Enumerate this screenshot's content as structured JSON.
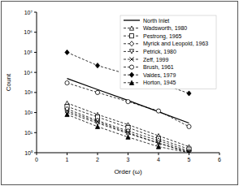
{
  "chart_data": {
    "type": "line",
    "x_label": "Order (ω)",
    "y_label": "Count",
    "x": [
      1,
      2,
      3,
      4,
      5
    ],
    "xlim": [
      0,
      6
    ],
    "xticks": [
      0,
      1,
      2,
      3,
      4,
      5,
      6
    ],
    "ylim": [
      1,
      10000000
    ],
    "yticks": [
      {
        "value": 1,
        "label": "10⁰"
      },
      {
        "value": 10,
        "label": "10¹"
      },
      {
        "value": 100,
        "label": "10²"
      },
      {
        "value": 1000,
        "label": "10³"
      },
      {
        "value": 10000,
        "label": "10⁴"
      },
      {
        "value": 100000,
        "label": "10⁵"
      },
      {
        "value": 1000000,
        "label": "10⁶"
      },
      {
        "value": 10000000,
        "label": "10⁷"
      }
    ],
    "log": "y",
    "grid": false,
    "legend": "upper right",
    "series": [
      {
        "name": "North Inlet",
        "color": "#000000",
        "line_style": "solid",
        "marker": "none",
        "values": [
          5000,
          1400,
          400,
          110,
          30
        ]
      },
      {
        "name": "Wadsworth, 1980",
        "color": "#000000",
        "line_style": "dashed",
        "marker": "open-triangle",
        "values": [
          300,
          80,
          25,
          7,
          2
        ]
      },
      {
        "name": "Pestrong, 1965",
        "color": "#000000",
        "line_style": "dashed",
        "marker": "open-square",
        "values": [
          200,
          60,
          18,
          5,
          1.5
        ]
      },
      {
        "name": "Myrick and Leopold, 1963",
        "color": "#000000",
        "line_style": "dashed",
        "marker": "open-diamond",
        "values": [
          150,
          40,
          12,
          4,
          1.2
        ]
      },
      {
        "name": "Petrick, 1980",
        "color": "#000000",
        "line_style": "dashed",
        "marker": "open-triangle-down",
        "values": [
          100,
          30,
          9,
          3,
          1
        ]
      },
      {
        "name": "Zeff, 1999",
        "color": "#000000",
        "line_style": "dashed",
        "marker": "x",
        "values": [
          120,
          35,
          10,
          3,
          1.1
        ]
      },
      {
        "name": "Brush, 1961",
        "color": "#000000",
        "line_style": "dashed",
        "marker": "open-circle",
        "values": [
          3000,
          1000,
          350,
          120,
          20
        ]
      },
      {
        "name": "Valdes, 1979",
        "color": "#000000",
        "line_style": "dashed",
        "marker": "filled-diamond",
        "values": [
          100000,
          22000,
          8000,
          3000,
          900
        ]
      },
      {
        "name": "Horton, 1945",
        "color": "#000000",
        "line_style": "dashed",
        "marker": "filled-triangle",
        "values": [
          80,
          20,
          6,
          2,
          1
        ]
      }
    ]
  }
}
